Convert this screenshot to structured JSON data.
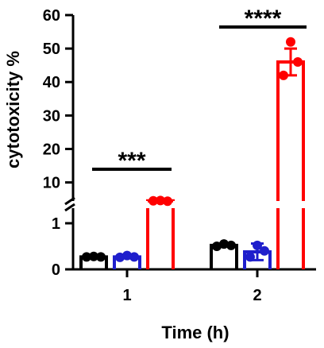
{
  "chart_data": {
    "type": "bar",
    "ylabel": "cytotoxicity %",
    "xlabel": "Time (h)",
    "categories": [
      "1",
      "2"
    ],
    "y_axis": {
      "break": true,
      "lower_segment": {
        "range": [
          0,
          1
        ],
        "ticks": [
          "0",
          "1"
        ]
      },
      "upper_segment": {
        "range": [
          3.5,
          60
        ],
        "ticks": [
          "10",
          "20",
          "30",
          "40",
          "50",
          "60"
        ]
      }
    },
    "series": [
      {
        "color": "#000000",
        "values": [
          0.27,
          0.52
        ],
        "points": [
          [
            0.27,
            0.28,
            0.27
          ],
          [
            0.5,
            0.55,
            0.52
          ]
        ]
      },
      {
        "color": "#1f1fcc",
        "values": [
          0.27,
          0.38
        ],
        "errors": [
          0.03,
          0.18
        ],
        "points": [
          [
            0.26,
            0.3,
            0.27
          ],
          [
            0.27,
            0.52,
            0.4
          ]
        ]
      },
      {
        "color": "#ff0000",
        "values": [
          4.5,
          46
        ],
        "errors": [
          0.2,
          4
        ],
        "points": [
          [
            4.5,
            4.6,
            4.4
          ],
          [
            42,
            52,
            46
          ]
        ]
      }
    ],
    "significance": [
      {
        "group": "1",
        "label": "***"
      },
      {
        "group": "2",
        "label": "****"
      }
    ],
    "grid": false,
    "legend": "none"
  }
}
